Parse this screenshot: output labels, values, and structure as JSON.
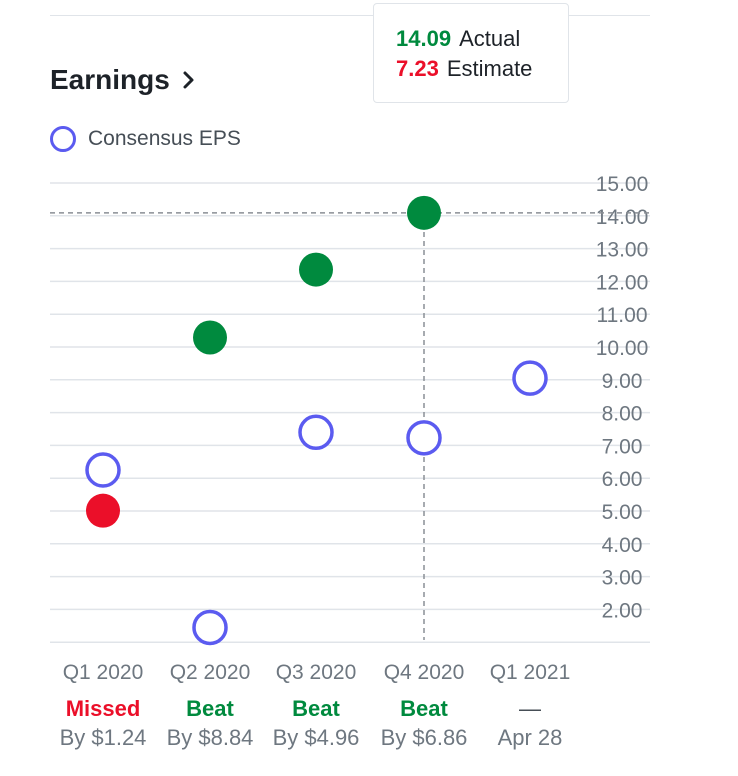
{
  "section": {
    "title": "Earnings"
  },
  "legend": {
    "label": "Consensus EPS"
  },
  "tooltip": {
    "actual_value": "14.09",
    "actual_label": "Actual",
    "estimate_value": "7.23",
    "estimate_label": "Estimate"
  },
  "colors": {
    "beat": "#008a3e",
    "missed": "#eb0f29",
    "consensus": "#5b5bf0",
    "grid": "#e0e4e9",
    "axis_text": "#6e7780"
  },
  "chart_data": {
    "type": "scatter",
    "categories": [
      "Q1 2020",
      "Q2 2020",
      "Q3 2020",
      "Q4 2020",
      "Q1 2021"
    ],
    "y_ticks": [
      "15.00",
      "14.00",
      "13.00",
      "12.00",
      "11.00",
      "10.00",
      "9.00",
      "8.00",
      "7.00",
      "6.00",
      "5.00",
      "4.00",
      "3.00",
      "2.00"
    ],
    "ylim": [
      1,
      15
    ],
    "grid": true,
    "legend_position": "top-left",
    "crosshair": {
      "category_index": 3,
      "y": 14.09
    },
    "series": [
      {
        "name": "Consensus EPS",
        "values": [
          6.25,
          1.45,
          7.4,
          7.23,
          9.05
        ]
      },
      {
        "values": [
          5.01,
          10.29,
          12.36,
          14.09,
          null
        ]
      }
    ]
  },
  "results": [
    {
      "status": "Missed",
      "kind": "missed",
      "detail": "By $1.24"
    },
    {
      "status": "Beat",
      "kind": "beat",
      "detail": "By $8.84"
    },
    {
      "status": "Beat",
      "kind": "beat",
      "detail": "By $4.96"
    },
    {
      "status": "Beat",
      "kind": "beat",
      "detail": "By $6.86"
    },
    {
      "status": "—",
      "kind": "pending",
      "detail": "Apr 28"
    }
  ]
}
